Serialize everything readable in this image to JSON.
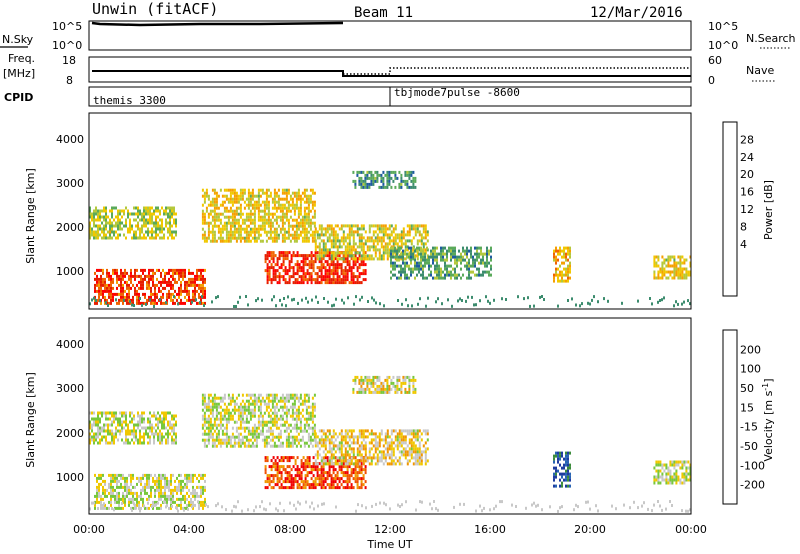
{
  "header": {
    "title": "Unwin (fitACF)",
    "beam": "Beam 11",
    "date": "12/Mar/2016"
  },
  "strips": {
    "nsky_label": "N.Sky",
    "nsky_ticks": [
      "10^5",
      "10^0"
    ],
    "nsearch_label": "N.Search",
    "nsearch_ticks": [
      "10^5",
      "10^0"
    ],
    "freq_label": "Freq.",
    "freq_unit": "[MHz]",
    "freq_ticks": [
      "18",
      "8"
    ],
    "nave_label": "Nave",
    "nave_ticks": [
      "60",
      "0"
    ],
    "cpid_label": "CPID",
    "cpid_segments": [
      {
        "name": "themis 3300",
        "start_h": 0,
        "end_h": 12
      },
      {
        "name": "tbjmode7pulse -8600",
        "start_h": 12,
        "end_h": 24
      }
    ]
  },
  "chart_data": [
    {
      "type": "heatmap",
      "panel": "power",
      "ylabel": "Slant Range [km]",
      "x_range_h": [
        0,
        24
      ],
      "ylim": [
        200,
        4600
      ],
      "y_ticks": [
        "1000",
        "2000",
        "3000",
        "4000"
      ],
      "colorbar": {
        "label": "Power [dB]",
        "ticks": [
          "4",
          "8",
          "12",
          "16",
          "20",
          "24",
          "28"
        ],
        "colors": [
          "#0000ff",
          "#1e5aa0",
          "#3c8c6e",
          "#5aaa5a",
          "#b4c83c",
          "#f0c800",
          "#f5a000",
          "#f06400",
          "#e61e00",
          "#ff0000"
        ]
      },
      "echo_regions": [
        {
          "t0": 0.2,
          "t1": 4.6,
          "r0": 300,
          "r1": 1100,
          "level": 0.85
        },
        {
          "t0": 0.0,
          "t1": 3.5,
          "r0": 1800,
          "r1": 2500,
          "level": 0.45
        },
        {
          "t0": 4.5,
          "t1": 9.0,
          "r0": 1700,
          "r1": 2900,
          "level": 0.55
        },
        {
          "t0": 7.0,
          "t1": 11.0,
          "r0": 800,
          "r1": 1500,
          "level": 0.9
        },
        {
          "t0": 9.0,
          "t1": 13.5,
          "r0": 1300,
          "r1": 2100,
          "level": 0.5
        },
        {
          "t0": 10.5,
          "t1": 13.0,
          "r0": 2900,
          "r1": 3300,
          "level": 0.25
        },
        {
          "t0": 12.0,
          "t1": 16.0,
          "r0": 900,
          "r1": 1600,
          "level": 0.3
        },
        {
          "t0": 18.5,
          "t1": 19.2,
          "r0": 800,
          "r1": 1600,
          "level": 0.6
        },
        {
          "t0": 22.5,
          "t1": 24.0,
          "r0": 900,
          "r1": 1400,
          "level": 0.55
        }
      ]
    },
    {
      "type": "heatmap",
      "panel": "velocity",
      "ylabel": "Slant Range [km]",
      "xlabel": "Time UT",
      "x_range_h": [
        0,
        24
      ],
      "x_ticks": [
        "00:00",
        "04:00",
        "08:00",
        "12:00",
        "16:00",
        "20:00",
        "00:00"
      ],
      "ylim": [
        200,
        4600
      ],
      "y_ticks": [
        "1000",
        "2000",
        "3000",
        "4000"
      ],
      "colorbar": {
        "label": "Velocity [m s^-1]",
        "ticks": [
          "200",
          "100",
          "50",
          "15",
          "-15",
          "-50",
          "-100",
          "-200"
        ],
        "colors": [
          "#1e3ca0",
          "#2864b4",
          "#3c8c3c",
          "#78c83c",
          "#c8c8c8",
          "#f0c800",
          "#f09600",
          "#f05000",
          "#f00000"
        ]
      },
      "echo_regions": [
        {
          "t0": 0.2,
          "t1": 4.6,
          "r0": 300,
          "r1": 1100,
          "level": 0.5
        },
        {
          "t0": 0.0,
          "t1": 3.5,
          "r0": 1800,
          "r1": 2500,
          "level": 0.5
        },
        {
          "t0": 4.5,
          "t1": 9.0,
          "r0": 1700,
          "r1": 2900,
          "level": 0.5
        },
        {
          "t0": 7.0,
          "t1": 11.0,
          "r0": 800,
          "r1": 1500,
          "level": 0.9
        },
        {
          "t0": 9.0,
          "t1": 13.5,
          "r0": 1300,
          "r1": 2100,
          "level": 0.6
        },
        {
          "t0": 10.5,
          "t1": 13.0,
          "r0": 2900,
          "r1": 3300,
          "level": 0.55
        },
        {
          "t0": 18.5,
          "t1": 19.2,
          "r0": 800,
          "r1": 1600,
          "level": 0.1
        },
        {
          "t0": 22.5,
          "t1": 24.0,
          "r0": 900,
          "r1": 1400,
          "level": 0.5
        }
      ]
    }
  ],
  "colors": {
    "frame": "#000000",
    "background": "#ffffff"
  }
}
